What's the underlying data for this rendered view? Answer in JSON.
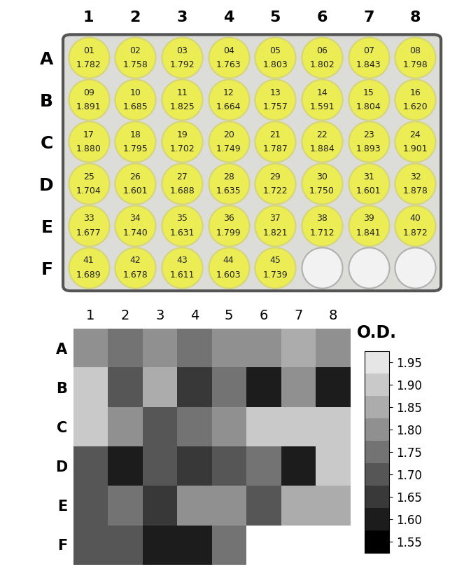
{
  "chart_data": [
    {
      "type": "plate",
      "rows": [
        "A",
        "B",
        "C",
        "D",
        "E",
        "F"
      ],
      "columns": [
        "1",
        "2",
        "3",
        "4",
        "5",
        "6",
        "7",
        "8"
      ],
      "well_labels": [
        [
          "01",
          "02",
          "03",
          "04",
          "05",
          "06",
          "07",
          "08"
        ],
        [
          "09",
          "10",
          "11",
          "12",
          "13",
          "14",
          "15",
          "16"
        ],
        [
          "17",
          "18",
          "19",
          "20",
          "21",
          "22",
          "23",
          "24"
        ],
        [
          "25",
          "26",
          "27",
          "28",
          "29",
          "30",
          "31",
          "32"
        ],
        [
          "33",
          "34",
          "35",
          "36",
          "37",
          "38",
          "39",
          "40"
        ],
        [
          "41",
          "42",
          "43",
          "44",
          "45",
          null,
          null,
          null
        ]
      ],
      "value_labels": [
        [
          "1.782",
          "1.758",
          "1.792",
          "1.763",
          "1.803",
          "1.802",
          "1.843",
          "1.798"
        ],
        [
          "1.891",
          "1.685",
          "1.825",
          "1.664",
          "1.757",
          "1.591",
          "1.804",
          "1.620"
        ],
        [
          "1.880",
          "1.795",
          "1.702",
          "1.749",
          "1.787",
          "1.884",
          "1.893",
          "1.901"
        ],
        [
          "1.704",
          "1.601",
          "1.688",
          "1.635",
          "1.722",
          "1.750",
          "1.601",
          "1.878"
        ],
        [
          "1.677",
          "1.740",
          "1.631",
          "1.799",
          "1.821",
          "1.712",
          "1.841",
          "1.872"
        ],
        [
          "1.689",
          "1.678",
          "1.611",
          "1.603",
          "1.739",
          null,
          null,
          null
        ]
      ]
    },
    {
      "type": "heatmap",
      "rows": [
        "A",
        "B",
        "C",
        "D",
        "E",
        "F"
      ],
      "columns": [
        "1",
        "2",
        "3",
        "4",
        "5",
        "6",
        "7",
        "8"
      ],
      "values": [
        [
          1.782,
          1.758,
          1.792,
          1.763,
          1.803,
          1.802,
          1.843,
          1.798
        ],
        [
          1.891,
          1.685,
          1.825,
          1.664,
          1.757,
          1.591,
          1.804,
          1.62
        ],
        [
          1.88,
          1.795,
          1.702,
          1.749,
          1.787,
          1.884,
          1.893,
          1.901
        ],
        [
          1.704,
          1.601,
          1.688,
          1.635,
          1.722,
          1.75,
          1.601,
          1.878
        ],
        [
          1.677,
          1.74,
          1.631,
          1.799,
          1.821,
          1.712,
          1.841,
          1.872
        ],
        [
          1.689,
          1.678,
          1.611,
          1.603,
          1.739,
          null,
          null,
          null
        ]
      ],
      "colorbar": {
        "label": "O.D.",
        "range": [
          1.525,
          1.975
        ],
        "ticks": [
          1.55,
          {
            "value": 1.6,
            "label": "1.60"
          },
          1.65,
          {
            "value": 1.7,
            "label": "1.70"
          },
          1.75,
          {
            "value": 1.8,
            "label": "1.80"
          },
          1.85,
          {
            "value": 1.9,
            "label": "1.90"
          },
          1.95
        ]
      }
    }
  ]
}
